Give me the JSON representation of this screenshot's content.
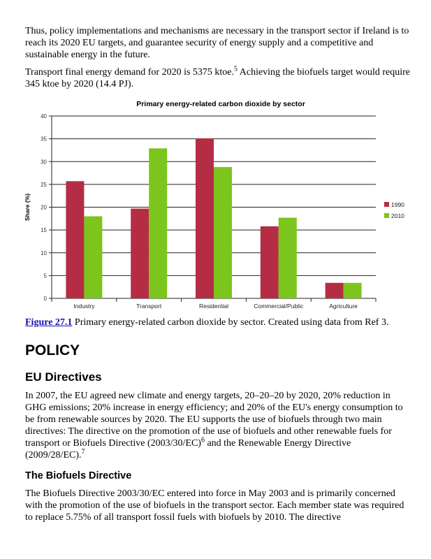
{
  "para1": "Thus, policy implementations and mechanisms are necessary in the transport sector if Ireland is to reach its 2020 EU targets, and guarantee security of energy supply and a competitive and sustainable energy in the future.",
  "para2_a": "Transport final energy demand for 2020 is 5375 ktoe.",
  "para2_sup": "5",
  "para2_b": " Achieving the biofuels target would require 345 ktoe by 2020 (14.4 PJ).",
  "caption_link": "Figure 27.1",
  "caption_text": " Primary energy-related carbon dioxide by sector. Created using data from Ref 3.",
  "heading1": "POLICY",
  "heading2": "EU Directives",
  "para3_a": "In 2007, the EU agreed new climate and energy targets, 20–20–20 by 2020, 20% reduction in GHG emissions; 20% increase in energy efficiency; and 20% of the EU's energy consumption to be from renewable sources by 2020. The EU supports the use of biofuels through two main directives: The directive on the promotion of the use of biofuels and other renewable fuels for transport or Biofuels Directive (2003/30/EC)",
  "para3_sup1": "6",
  "para3_b": " and the Renewable Energy Directive (2009/28/EC).",
  "para3_sup2": "7",
  "heading3": "The Biofuels Directive",
  "para4": "The Biofuels Directive 2003/30/EC entered into force in May 2003 and is primarily concerned with the promotion of the use of biofuels in the transport sector. Each member state was required to replace 5.75% of all transport fossil fuels with biofuels by 2010. The directive",
  "chart_data": {
    "type": "bar",
    "title": "Primary energy-related carbon dioxide by sector",
    "xlabel": "",
    "ylabel": "Share (%)",
    "ylim": [
      0,
      40
    ],
    "yticks": [
      "0",
      "5",
      "10",
      "15",
      "20",
      "25",
      "30",
      "35",
      "40"
    ],
    "categories": [
      "Industry",
      "Transport",
      "Residential",
      "Commercial/Public",
      "Agriculture"
    ],
    "series": [
      {
        "name": "1990",
        "color": "#b52d45",
        "values": [
          25.7,
          19.7,
          35.1,
          15.8,
          3.4
        ]
      },
      {
        "name": "2010",
        "color": "#7cc51c",
        "values": [
          18.0,
          32.9,
          28.8,
          17.7,
          3.4
        ]
      }
    ],
    "grid": true,
    "legend": "right"
  }
}
